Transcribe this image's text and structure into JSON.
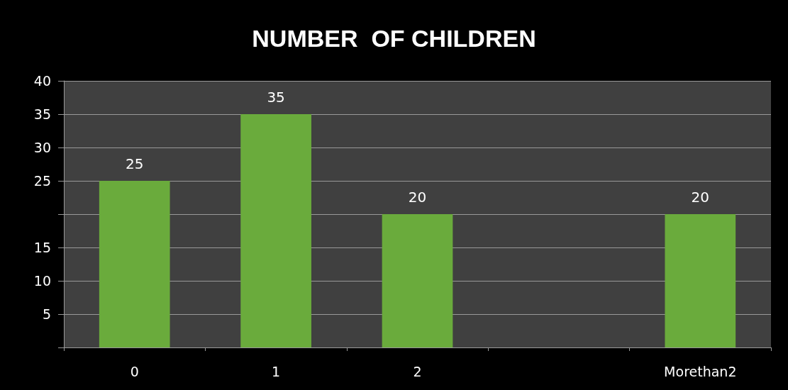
{
  "chart_data": {
    "type": "bar",
    "title": "NUMBER  OF CHILDREN",
    "categories": [
      "0",
      "1",
      "2",
      null,
      "Morethan2"
    ],
    "values": [
      25,
      35,
      20,
      null,
      20
    ],
    "color": "#6aab3c",
    "ylim": [
      0,
      40
    ],
    "yticks": [
      {
        "value": 0,
        "label": null
      },
      5,
      10,
      15,
      {
        "value": 20,
        "label": null
      },
      25,
      30,
      35,
      40
    ],
    "grid": "y",
    "data_labels": true
  }
}
